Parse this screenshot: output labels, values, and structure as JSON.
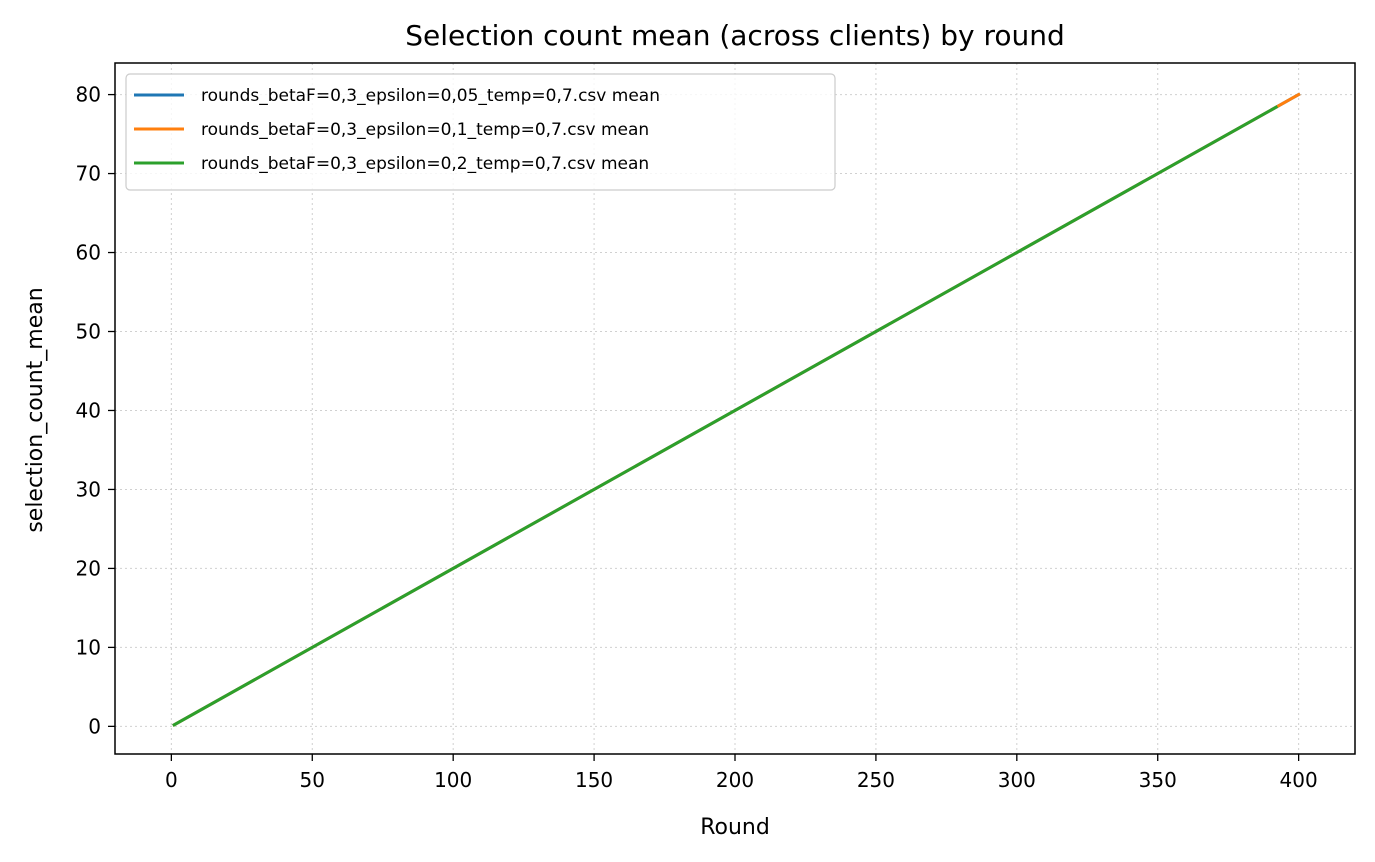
{
  "chart_data": {
    "type": "line",
    "title": "Selection count mean (across clients) by round",
    "xlabel": "Round",
    "ylabel": "selection_count_mean",
    "xlim": [
      -20,
      420
    ],
    "ylim": [
      -3.5,
      84
    ],
    "xticks": [
      0,
      50,
      100,
      150,
      200,
      250,
      300,
      350,
      400
    ],
    "yticks": [
      0,
      10,
      20,
      30,
      40,
      50,
      60,
      70,
      80
    ],
    "grid": true,
    "legend_position": "upper-left",
    "series": [
      {
        "name": "rounds_betaF=0,3_epsilon=0,05_temp=0,7.csv mean",
        "color": "#1f77b4",
        "x": [
          1,
          400
        ],
        "y": [
          0.2,
          80
        ]
      },
      {
        "name": "rounds_betaF=0,3_epsilon=0,1_temp=0,7.csv mean",
        "color": "#ff7f0e",
        "x": [
          1,
          400
        ],
        "y": [
          0.2,
          80
        ]
      },
      {
        "name": "rounds_betaF=0,3_epsilon=0,2_temp=0,7.csv mean",
        "color": "#2ca02c",
        "x": [
          1,
          392
        ],
        "y": [
          0.2,
          78.4
        ]
      }
    ]
  }
}
